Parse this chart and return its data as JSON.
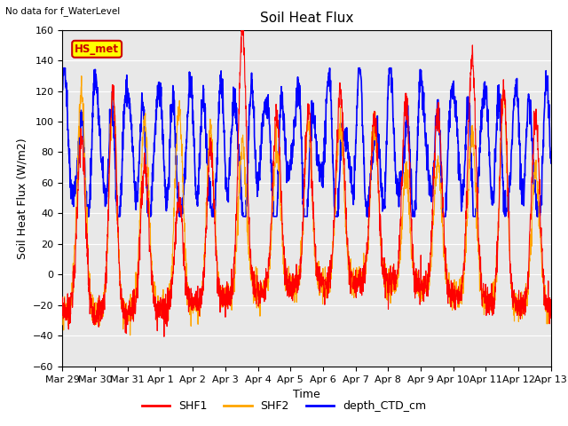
{
  "title": "Soil Heat Flux",
  "fig_text": "No data for f_WaterLevel",
  "xlabel": "Time",
  "ylabel": "Soil Heat Flux (W/m2)",
  "ylim": [
    -60,
    160
  ],
  "yticks": [
    -60,
    -40,
    -20,
    0,
    20,
    40,
    60,
    80,
    100,
    120,
    140,
    160
  ],
  "xtick_labels": [
    "Mar 29",
    "Mar 30",
    "Mar 31",
    "Apr 1",
    "Apr 2",
    "Apr 3",
    "Apr 4",
    "Apr 5",
    "Apr 6",
    "Apr 7",
    "Apr 8",
    "Apr 9",
    "Apr 10",
    "Apr 11",
    "Apr 12",
    "Apr 13"
  ],
  "legend_labels": [
    "SHF1",
    "SHF2",
    "depth_CTD_cm"
  ],
  "legend_colors": [
    "red",
    "orange",
    "blue"
  ],
  "shf1_color": "red",
  "shf2_color": "orange",
  "ctd_color": "blue",
  "box_label": "HS_met",
  "box_color": "#ffff00",
  "box_border_color": "#cc0000",
  "box_text_color": "#cc0000",
  "background_color": "#e8e8e8",
  "n_days": 15,
  "samples_per_day": 144,
  "title_fontsize": 11,
  "label_fontsize": 9,
  "tick_fontsize": 8
}
